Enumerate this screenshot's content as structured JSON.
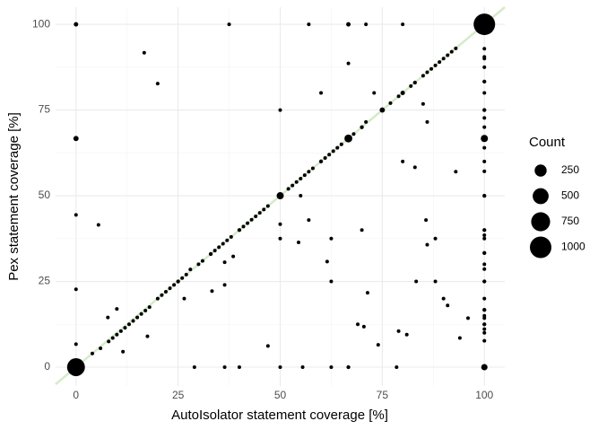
{
  "chart_data": {
    "type": "scatter",
    "x_label": "AutoIsolator statement coverage [%]",
    "y_label": "Pex statement coverage [%]",
    "legend_title": "Count",
    "legend_sizes": [
      250,
      500,
      750,
      1000
    ],
    "xlim": [
      -5,
      105
    ],
    "ylim": [
      -5.5,
      105
    ],
    "xticks": [
      0,
      25,
      50,
      75,
      100
    ],
    "yticks": [
      0,
      25,
      50,
      75,
      100
    ],
    "grid": true,
    "color": "#000000",
    "reference_line_color": "#d4ebc8",
    "x": [
      4,
      6,
      8,
      9,
      10,
      11,
      12,
      13,
      14,
      15,
      16,
      17,
      18,
      20,
      21,
      22,
      23,
      24,
      25,
      26,
      27,
      28,
      30,
      31,
      33,
      34,
      35,
      36,
      37,
      38,
      40,
      41,
      42,
      43,
      44,
      45,
      46,
      47,
      50,
      52,
      53,
      54,
      55,
      56,
      57,
      58,
      60,
      61,
      62,
      63,
      64,
      65,
      66.7,
      68,
      70,
      71,
      75,
      77,
      79,
      80,
      82,
      83,
      85,
      86,
      87,
      88,
      89,
      90,
      91,
      92,
      93,
      99,
      100,
      0,
      0,
      0,
      0,
      0,
      0,
      5.5,
      16.7,
      20,
      37.5,
      57,
      66.7,
      71,
      80,
      66.7,
      60,
      73,
      50,
      85,
      86,
      80,
      83,
      93,
      55,
      57,
      50,
      50,
      54.5,
      62.5,
      70,
      61.5,
      62.5,
      71.4,
      69,
      70.5,
      74,
      79,
      81,
      47,
      85.7,
      86,
      88,
      83.3,
      88,
      90,
      91,
      94,
      96,
      10,
      7.8,
      11.5,
      17.5,
      26.5,
      33.3,
      36.4,
      36.4,
      38.5,
      29,
      36.4,
      40,
      50,
      55.5,
      62.5,
      66.7,
      78.5,
      100,
      100,
      100,
      100,
      100,
      100,
      100,
      100,
      100,
      100,
      100,
      100,
      100,
      100,
      100,
      100,
      100,
      100,
      100,
      100,
      100,
      100,
      100,
      100,
      100,
      100,
      100,
      100,
      100,
      100
    ],
    "y": [
      4,
      5.5,
      7.5,
      8.5,
      9.5,
      10.5,
      11.5,
      12.5,
      13.5,
      14.5,
      15.5,
      16.5,
      17.5,
      20,
      21,
      22,
      23,
      24,
      25,
      26,
      27,
      28.5,
      30,
      31,
      33,
      34,
      35,
      36,
      37,
      38,
      40,
      41,
      42,
      43,
      44,
      45,
      46,
      47,
      50,
      52,
      53,
      54,
      55,
      56,
      57,
      58,
      60,
      61,
      62,
      63,
      64,
      65,
      66.7,
      68,
      70,
      71.5,
      75,
      77,
      79,
      80,
      82,
      83,
      85,
      86,
      87,
      88,
      89,
      90,
      91,
      92,
      93,
      99,
      100,
      0,
      100,
      66.7,
      44.4,
      22.7,
      6.7,
      41.5,
      91.7,
      82.7,
      100,
      100,
      100,
      100,
      100,
      88.6,
      80,
      80,
      75,
      76.8,
      71.5,
      60,
      58.3,
      57,
      50,
      42.9,
      41.7,
      37.5,
      36.4,
      37.5,
      40,
      30.8,
      25,
      21.7,
      12.5,
      11.8,
      6.5,
      10.5,
      9.5,
      6.2,
      42.9,
      35.7,
      37.5,
      25,
      25,
      20,
      18,
      8.5,
      14.3,
      17,
      14.5,
      4.5,
      9,
      20,
      22.2,
      24,
      30.6,
      32.3,
      0,
      0,
      0,
      0,
      0,
      0,
      0,
      0,
      92.9,
      90.5,
      90,
      87.5,
      83.3,
      80,
      75,
      72.7,
      70,
      66.7,
      64,
      60,
      57.1,
      50,
      40,
      37.5,
      33.3,
      30,
      28.6,
      25,
      20,
      16.7,
      15,
      14.3,
      12.5,
      11.1,
      10,
      7.7,
      0,
      38.5
    ],
    "size": [
      3,
      3,
      3,
      3,
      3,
      3,
      3,
      3,
      3,
      3,
      3,
      3,
      3,
      3,
      3,
      3,
      3,
      3,
      5,
      3,
      3,
      3,
      3,
      3,
      5,
      3,
      3,
      3,
      3,
      3,
      5,
      3,
      3,
      3,
      3,
      3,
      3,
      3,
      60,
      3,
      3,
      3,
      3,
      3,
      3,
      3,
      5,
      3,
      3,
      3,
      3,
      3,
      80,
      3,
      5,
      3,
      20,
      3,
      3,
      10,
      3,
      5,
      3,
      3,
      3,
      3,
      3,
      3,
      3,
      3,
      3,
      3,
      1000,
      650,
      10,
      20,
      3,
      3,
      3,
      3,
      3,
      3,
      3,
      3,
      10,
      3,
      3,
      3,
      3,
      3,
      3,
      3,
      3,
      3,
      3,
      3,
      3,
      3,
      3,
      3,
      3,
      3,
      3,
      3,
      3,
      3,
      3,
      3,
      3,
      3,
      3,
      3,
      3,
      3,
      3,
      3,
      3,
      3,
      3,
      3,
      3,
      3,
      3,
      3,
      3,
      3,
      3,
      3,
      3,
      3,
      3,
      3,
      3,
      3,
      3,
      3,
      5,
      3,
      3,
      3,
      3,
      3,
      5,
      3,
      5,
      3,
      3,
      60,
      3,
      3,
      3,
      5,
      5,
      3,
      5,
      3,
      3,
      5,
      3,
      5,
      3,
      3,
      5,
      3,
      3,
      3,
      40,
      3
    ]
  }
}
